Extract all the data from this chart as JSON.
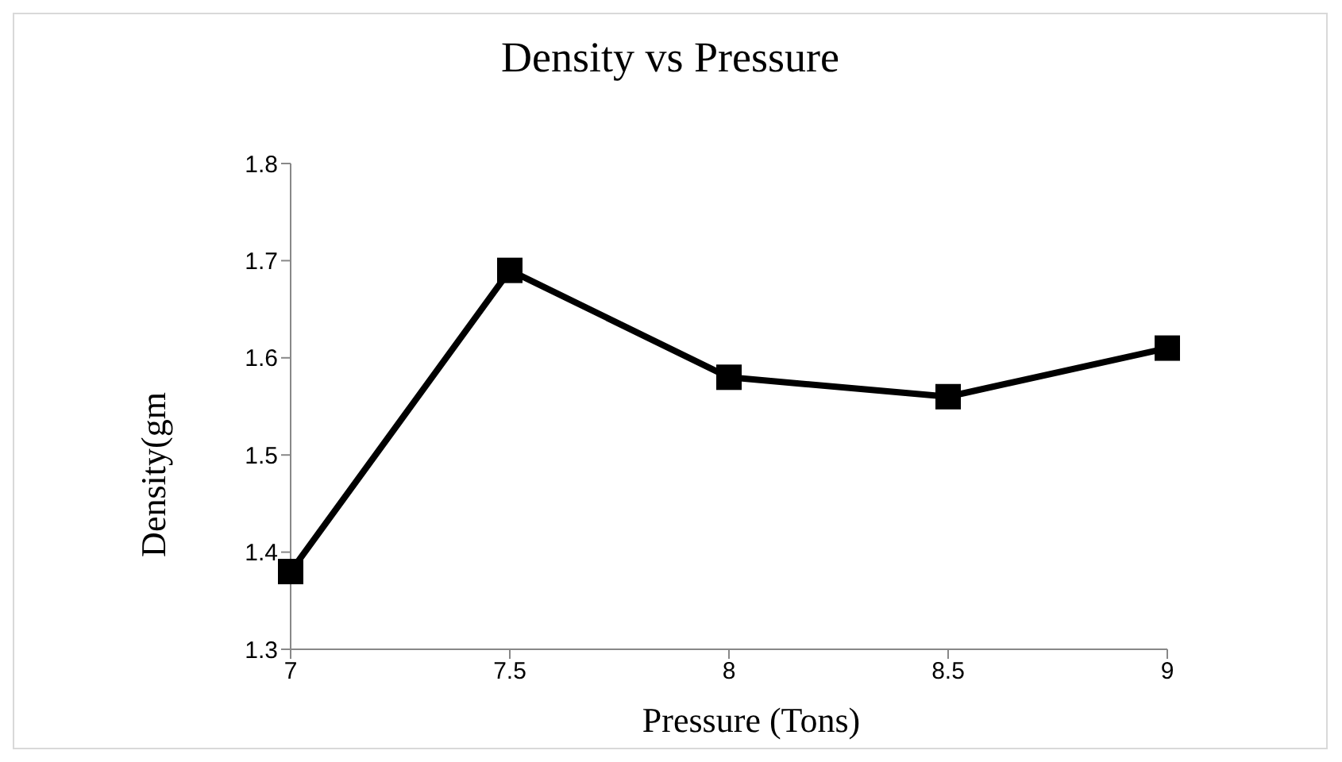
{
  "chart_data": {
    "type": "line",
    "title": "Density vs Pressure",
    "xlabel": "Pressure (Tons)",
    "ylabel": "Density(gm",
    "categories": [
      "7",
      "7.5",
      "8",
      "8.5",
      "9"
    ],
    "series": [
      {
        "color": "#000000",
        "values": [
          1.38,
          1.69,
          1.58,
          1.56,
          1.61
        ]
      }
    ],
    "ylim": [
      1.3,
      1.8
    ],
    "yticks": [
      1.3,
      1.4,
      1.5,
      1.6,
      1.7,
      1.8
    ],
    "grid": false,
    "legend": false,
    "marker": "square",
    "line_style": "solid"
  }
}
